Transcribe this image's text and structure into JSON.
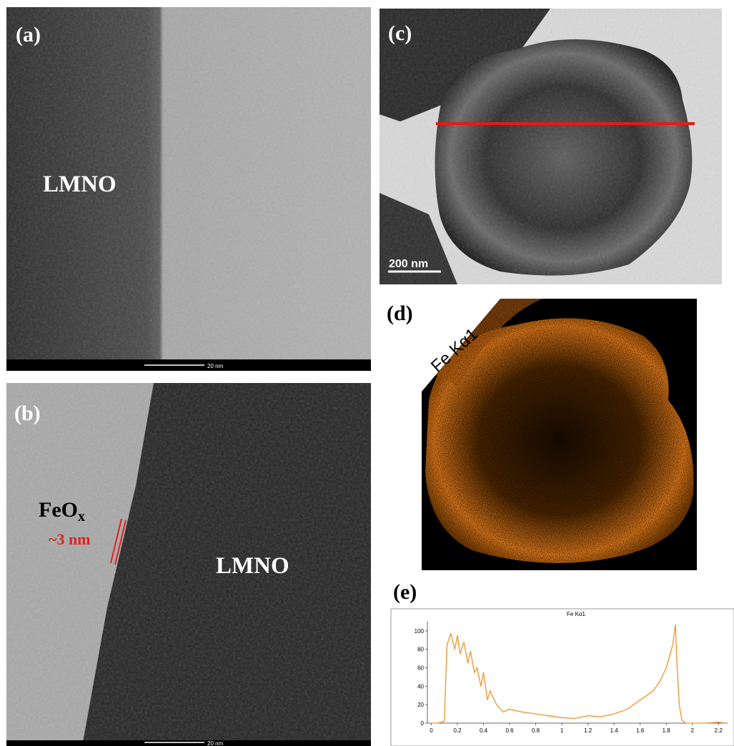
{
  "panels": {
    "a": {
      "label": "(a)",
      "material": "LMNO",
      "scale_bar": "20 nm"
    },
    "b": {
      "label": "(b)",
      "material": "LMNO",
      "coating": {
        "formula": "FeO",
        "subscript": "x",
        "thickness": "~3 nm"
      },
      "scale_bar": "20 nm"
    },
    "c": {
      "label": "(c)",
      "scale_bar": "200 nm"
    },
    "d": {
      "label": "(d)",
      "map_label": "Fe Kα1"
    },
    "e": {
      "label": "(e)"
    }
  },
  "chart_data": {
    "type": "line",
    "title": "Fe Kα1",
    "color": "#f0932b",
    "x": [
      0,
      0.05,
      0.1,
      0.12,
      0.15,
      0.18,
      0.2,
      0.22,
      0.25,
      0.28,
      0.3,
      0.33,
      0.35,
      0.38,
      0.4,
      0.43,
      0.45,
      0.5,
      0.55,
      0.6,
      0.7,
      0.8,
      0.9,
      1.0,
      1.1,
      1.2,
      1.3,
      1.4,
      1.5,
      1.55,
      1.6,
      1.65,
      1.7,
      1.75,
      1.8,
      1.83,
      1.85,
      1.87,
      1.88,
      1.9,
      1.92,
      1.95,
      2.0,
      2.1,
      2.2,
      2.25
    ],
    "values": [
      0,
      0,
      2,
      85,
      97,
      80,
      95,
      75,
      88,
      65,
      78,
      55,
      60,
      40,
      55,
      25,
      35,
      20,
      12,
      15,
      12,
      10,
      8,
      6,
      5,
      8,
      7,
      10,
      15,
      20,
      25,
      30,
      35,
      45,
      60,
      75,
      85,
      107,
      70,
      20,
      3,
      0,
      0,
      0,
      1,
      0
    ],
    "xlim": [
      -0.03,
      2.27
    ],
    "ylim": [
      0,
      110
    ],
    "xticks": [
      0,
      0.2,
      0.4,
      0.6,
      0.8,
      1,
      1.2,
      1.4,
      1.6,
      1.8,
      2,
      2.2
    ],
    "yticks": [
      0,
      20,
      40,
      60,
      80,
      100
    ]
  }
}
